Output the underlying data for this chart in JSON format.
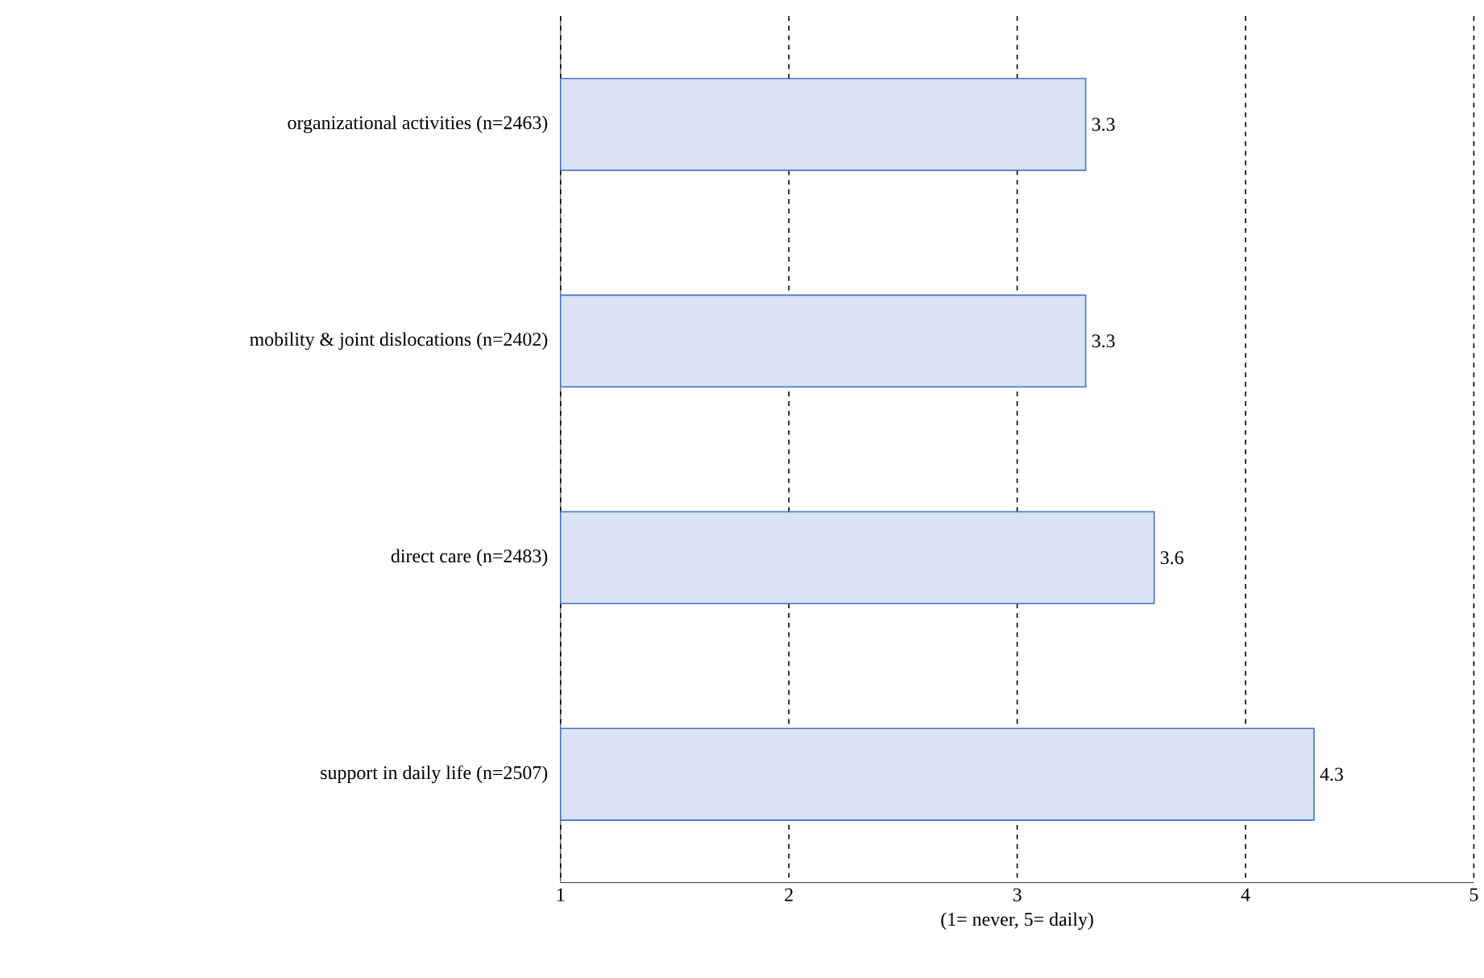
{
  "chart_data": {
    "type": "bar",
    "orientation": "horizontal",
    "xlabel": "(1= never, 5= daily)",
    "categories": [
      "organizational activities (n=2463)",
      "mobility & joint dislocations (n=2402)",
      "direct care (n=2483)",
      "support in daily life (n=2507)"
    ],
    "values": [
      3.3,
      3.3,
      3.6,
      4.3
    ],
    "color": "#dae3f3",
    "xlim": [
      1,
      5
    ],
    "xticks": [
      1,
      2,
      3,
      4,
      5
    ],
    "grid": "x",
    "data_labels": true
  }
}
